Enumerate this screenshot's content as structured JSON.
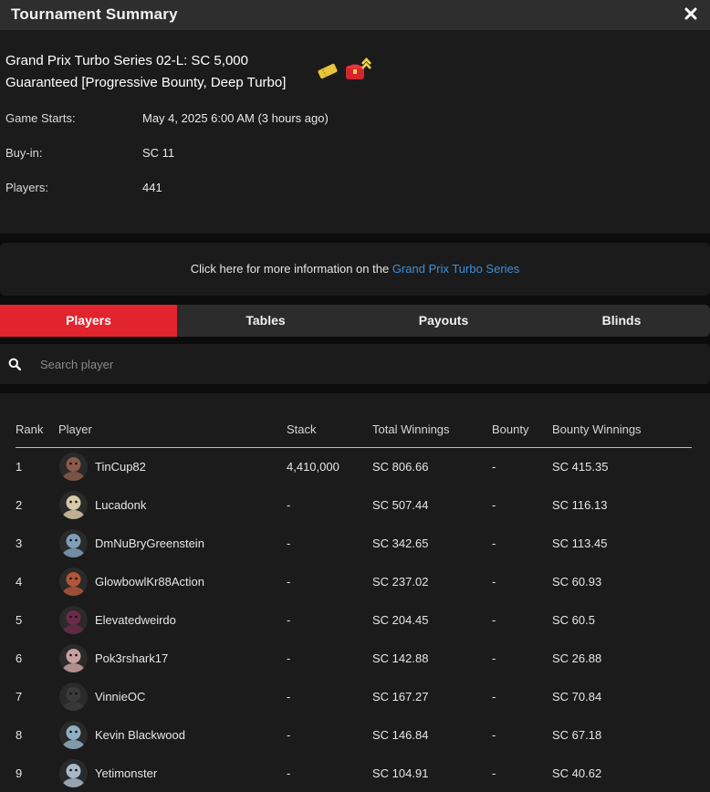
{
  "window": {
    "title": "Tournament Summary",
    "close_icon": "close-icon"
  },
  "tournament": {
    "name": "Grand Prix Turbo Series 02-L: SC 5,000 Guaranteed [Progressive Bounty, Deep Turbo]",
    "icons": [
      "ticket-icon",
      "bounty-chest-icon"
    ],
    "details": [
      {
        "label": "Game Starts:",
        "value": "May 4, 2025 6:00 AM (3 hours ago)"
      },
      {
        "label": "Buy-in:",
        "value": "SC 11"
      },
      {
        "label": "Players:",
        "value": "441"
      }
    ]
  },
  "more_info": {
    "prefix": "Click here for more information on the ",
    "link": "Grand Prix Turbo Series"
  },
  "tabs": [
    {
      "label": "Players",
      "active": true
    },
    {
      "label": "Tables",
      "active": false
    },
    {
      "label": "Payouts",
      "active": false
    },
    {
      "label": "Blinds",
      "active": false
    }
  ],
  "search": {
    "placeholder": "Search player",
    "icon": "search-icon"
  },
  "table": {
    "columns": [
      "Rank",
      "Player",
      "Stack",
      "Total Winnings",
      "Bounty",
      "Bounty Winnings"
    ],
    "rows": [
      {
        "rank": "1",
        "player": "TinCup82",
        "stack": "4,410,000",
        "total": "SC 806.66",
        "bounty": "-",
        "bounty_winnings": "SC 415.35",
        "avatar_color": "#8a5a4a"
      },
      {
        "rank": "2",
        "player": "Lucadonk",
        "stack": "-",
        "total": "SC 507.44",
        "bounty": "-",
        "bounty_winnings": "SC 116.13",
        "avatar_color": "#d8c9a8"
      },
      {
        "rank": "3",
        "player": "DmNuBryGreenstein",
        "stack": "-",
        "total": "SC 342.65",
        "bounty": "-",
        "bounty_winnings": "SC 113.45",
        "avatar_color": "#7f9fb8"
      },
      {
        "rank": "4",
        "player": "GlowbowlKr88Action",
        "stack": "-",
        "total": "SC 237.02",
        "bounty": "-",
        "bounty_winnings": "SC 60.93",
        "avatar_color": "#b2553a"
      },
      {
        "rank": "5",
        "player": "Elevatedweirdo",
        "stack": "-",
        "total": "SC 204.45",
        "bounty": "-",
        "bounty_winnings": "SC 60.5",
        "avatar_color": "#6a2a4a"
      },
      {
        "rank": "6",
        "player": "Pok3rshark17",
        "stack": "-",
        "total": "SC 142.88",
        "bounty": "-",
        "bounty_winnings": "SC 26.88",
        "avatar_color": "#c9a0a0"
      },
      {
        "rank": "7",
        "player": "VinnieOC",
        "stack": "-",
        "total": "SC 167.27",
        "bounty": "-",
        "bounty_winnings": "SC 70.84",
        "avatar_color": "#3a3a3a"
      },
      {
        "rank": "8",
        "player": "Kevin Blackwood",
        "stack": "-",
        "total": "SC 146.84",
        "bounty": "-",
        "bounty_winnings": "SC 67.18",
        "avatar_color": "#8fb0c0"
      },
      {
        "rank": "9",
        "player": "Yetimonster",
        "stack": "-",
        "total": "SC 104.91",
        "bounty": "-",
        "bounty_winnings": "SC 40.62",
        "avatar_color": "#a8b8c8"
      }
    ]
  }
}
